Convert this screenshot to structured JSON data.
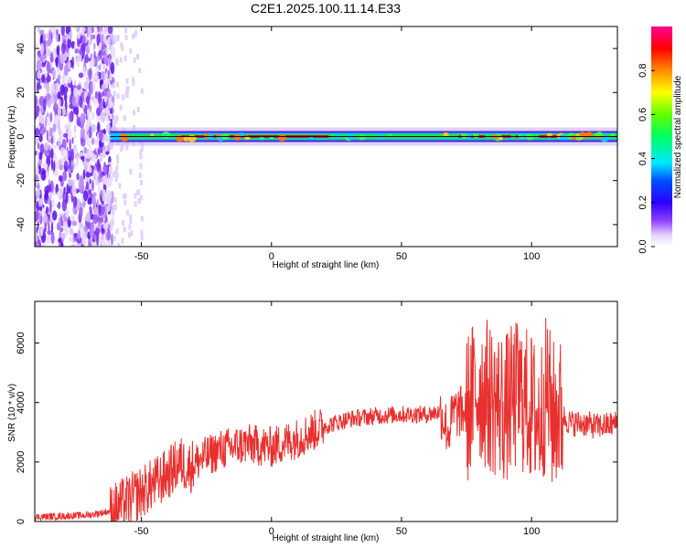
{
  "title": "C2E1.2025.100.11.14.E33",
  "colors": {
    "snr_line": "#e8302e",
    "ridge_dark": "#3a00d8",
    "ridge_light": "#c8aef0",
    "ridge_green": "#28e03c",
    "ridge_red": "#e01010"
  },
  "chart_data": [
    {
      "type": "heatmap",
      "id": "spectrogram",
      "xlabel": "Height of straight line (km)",
      "ylabel": "Frequency (Hz)",
      "xlim": [
        -91,
        133
      ],
      "ylim": [
        -50,
        50
      ],
      "xticks": [
        -50,
        0,
        50,
        100
      ],
      "yticks": [
        -40,
        -20,
        0,
        20,
        40
      ],
      "colorbar": {
        "label": "Normalized spectral amplitude",
        "range": [
          0,
          1
        ],
        "ticks": [
          "0.0",
          "0.2",
          "0.4",
          "0.6",
          "0.8"
        ]
      },
      "ridge": {
        "frequency": 0,
        "note": "noise dominated below -62 km; narrow ridge near 0 Hz above; peak amplitude between -35 and 22 km and around 75-110 km"
      }
    },
    {
      "type": "line",
      "id": "snr",
      "xlabel": "Height of straight line (km)",
      "ylabel": "SNR (10 * v/v)",
      "xlim": [
        -91,
        133
      ],
      "ylim": [
        0,
        7400
      ],
      "xticks": [
        -50,
        0,
        50,
        100
      ],
      "yticks": [
        0,
        2000,
        4000,
        6000
      ],
      "grid": false,
      "series": [
        {
          "x": [
            -91,
            -80,
            -70,
            -62,
            -55,
            -48,
            -42,
            -38,
            -35,
            -32,
            -28,
            -20,
            -10,
            0,
            10,
            20,
            30,
            40,
            50,
            60,
            65,
            68,
            70,
            75,
            78,
            80,
            85,
            90,
            95,
            100,
            103,
            106,
            108,
            110,
            115,
            120,
            125,
            130,
            133
          ],
          "values": [
            150,
            180,
            220,
            350,
            700,
            1100,
            1450,
            1750,
            2000,
            1800,
            2050,
            2400,
            2600,
            2500,
            2800,
            3200,
            3450,
            3550,
            3600,
            3600,
            3700,
            3000,
            3650,
            3700,
            4300,
            4500,
            4100,
            3800,
            4300,
            3800,
            3400,
            4500,
            3500,
            3700,
            3300,
            3300,
            3200,
            3250,
            3300
          ]
        }
      ]
    }
  ]
}
